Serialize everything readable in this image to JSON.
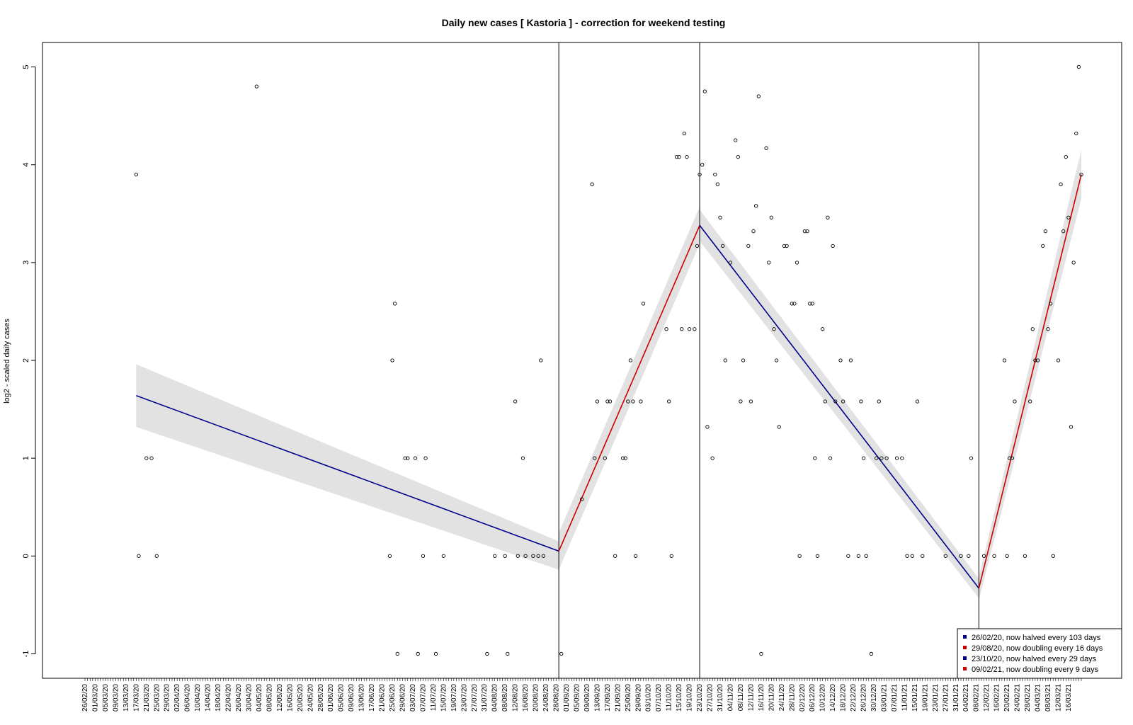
{
  "chart_data": {
    "type": "scatter",
    "title": "Daily new cases [ Kastoria ] - correction for weekend testing",
    "xlabel": "",
    "ylabel": "log2 - scaled daily cases",
    "ylim": [
      -1.25,
      5.25
    ],
    "y_ticks": [
      -1,
      0,
      1,
      2,
      3,
      4,
      5
    ],
    "x_start": "2020-02-26",
    "x_end": "2021-03-21",
    "x_tick_labels": [
      "26/02/20",
      "01/03/20",
      "05/03/20",
      "09/03/20",
      "13/03/20",
      "17/03/20",
      "21/03/20",
      "25/03/20",
      "29/03/20",
      "02/04/20",
      "06/04/20",
      "10/04/20",
      "14/04/20",
      "18/04/20",
      "22/04/20",
      "26/04/20",
      "30/04/20",
      "04/05/20",
      "08/05/20",
      "12/05/20",
      "16/05/20",
      "20/05/20",
      "24/05/20",
      "28/05/20",
      "01/06/20",
      "05/06/20",
      "09/06/20",
      "13/06/20",
      "17/06/20",
      "21/06/20",
      "25/06/20",
      "29/06/20",
      "03/07/20",
      "07/07/20",
      "11/07/20",
      "15/07/20",
      "19/07/20",
      "23/07/20",
      "27/07/20",
      "31/07/20",
      "04/08/20",
      "08/08/20",
      "12/08/20",
      "16/08/20",
      "20/08/20",
      "24/08/20",
      "28/08/20",
      "01/09/20",
      "05/09/20",
      "09/09/20",
      "13/09/20",
      "17/09/20",
      "21/09/20",
      "25/09/20",
      "29/09/20",
      "03/10/20",
      "07/10/20",
      "11/10/20",
      "15/10/20",
      "19/10/20",
      "23/10/20",
      "27/10/20",
      "31/10/20",
      "04/11/20",
      "08/11/20",
      "12/11/20",
      "16/11/20",
      "20/11/20",
      "24/11/20",
      "28/11/20",
      "02/12/20",
      "06/12/20",
      "10/12/20",
      "14/12/20",
      "18/12/20",
      "22/12/20",
      "26/12/20",
      "30/12/20",
      "03/01/21",
      "07/01/21",
      "11/01/21",
      "15/01/21",
      "19/01/21",
      "23/01/21",
      "27/01/21",
      "31/01/21",
      "04/02/21",
      "08/02/21",
      "12/02/21",
      "16/02/21",
      "20/02/21",
      "24/02/21",
      "28/02/21",
      "04/03/21",
      "08/03/21",
      "12/03/21",
      "16/03/21"
    ],
    "breakpoints": [
      "2020-08-29",
      "2020-10-23",
      "2021-02-09"
    ],
    "points": [
      [
        "2020-03-17",
        3.9
      ],
      [
        "2020-03-18",
        0
      ],
      [
        "2020-03-21",
        1
      ],
      [
        "2020-03-23",
        1
      ],
      [
        "2020-03-25",
        0
      ],
      [
        "2020-05-03",
        4.8
      ],
      [
        "2020-06-24",
        0
      ],
      [
        "2020-06-25",
        2
      ],
      [
        "2020-06-26",
        2.58
      ],
      [
        "2020-06-27",
        -1
      ],
      [
        "2020-06-30",
        1
      ],
      [
        "2020-07-01",
        1
      ],
      [
        "2020-07-04",
        1
      ],
      [
        "2020-07-05",
        -1
      ],
      [
        "2020-07-07",
        0
      ],
      [
        "2020-07-08",
        1
      ],
      [
        "2020-07-12",
        -1
      ],
      [
        "2020-07-15",
        0
      ],
      [
        "2020-08-01",
        -1
      ],
      [
        "2020-08-04",
        0
      ],
      [
        "2020-08-08",
        0
      ],
      [
        "2020-08-09",
        -1
      ],
      [
        "2020-08-12",
        1.58
      ],
      [
        "2020-08-13",
        0
      ],
      [
        "2020-08-15",
        1
      ],
      [
        "2020-08-16",
        0
      ],
      [
        "2020-08-19",
        0
      ],
      [
        "2020-08-21",
        0
      ],
      [
        "2020-08-22",
        2
      ],
      [
        "2020-08-23",
        0
      ],
      [
        "2020-08-30",
        -1
      ],
      [
        "2020-09-07",
        0.58
      ],
      [
        "2020-09-11",
        3.8
      ],
      [
        "2020-09-12",
        1
      ],
      [
        "2020-09-13",
        1.58
      ],
      [
        "2020-09-16",
        1
      ],
      [
        "2020-09-17",
        1.58
      ],
      [
        "2020-09-18",
        1.58
      ],
      [
        "2020-09-20",
        0
      ],
      [
        "2020-09-23",
        1
      ],
      [
        "2020-09-24",
        1
      ],
      [
        "2020-09-25",
        1.58
      ],
      [
        "2020-09-26",
        2
      ],
      [
        "2020-09-27",
        1.58
      ],
      [
        "2020-09-28",
        0
      ],
      [
        "2020-09-30",
        1.58
      ],
      [
        "2020-10-01",
        2.58
      ],
      [
        "2020-10-10",
        2.32
      ],
      [
        "2020-10-11",
        1.58
      ],
      [
        "2020-10-12",
        0
      ],
      [
        "2020-10-14",
        4.08
      ],
      [
        "2020-10-15",
        4.08
      ],
      [
        "2020-10-16",
        2.32
      ],
      [
        "2020-10-17",
        4.32
      ],
      [
        "2020-10-18",
        4.08
      ],
      [
        "2020-10-19",
        2.32
      ],
      [
        "2020-10-21",
        2.32
      ],
      [
        "2020-10-22",
        3.17
      ],
      [
        "2020-10-23",
        3.9
      ],
      [
        "2020-10-24",
        4.0
      ],
      [
        "2020-10-25",
        4.75
      ],
      [
        "2020-10-26",
        1.32
      ],
      [
        "2020-10-28",
        1
      ],
      [
        "2020-10-29",
        3.9
      ],
      [
        "2020-10-30",
        3.8
      ],
      [
        "2020-10-31",
        3.46
      ],
      [
        "2020-11-01",
        3.17
      ],
      [
        "2020-11-02",
        2
      ],
      [
        "2020-11-04",
        3.0
      ],
      [
        "2020-11-06",
        4.25
      ],
      [
        "2020-11-07",
        4.08
      ],
      [
        "2020-11-09",
        2
      ],
      [
        "2020-11-08",
        1.58
      ],
      [
        "2020-11-11",
        3.17
      ],
      [
        "2020-11-12",
        1.58
      ],
      [
        "2020-11-13",
        3.32
      ],
      [
        "2020-11-14",
        3.58
      ],
      [
        "2020-11-15",
        4.7
      ],
      [
        "2020-11-16",
        -1
      ],
      [
        "2020-11-18",
        4.17
      ],
      [
        "2020-11-19",
        3.0
      ],
      [
        "2020-11-20",
        3.46
      ],
      [
        "2020-11-21",
        2.32
      ],
      [
        "2020-11-22",
        2
      ],
      [
        "2020-11-23",
        1.32
      ],
      [
        "2020-11-25",
        3.17
      ],
      [
        "2020-11-26",
        3.17
      ],
      [
        "2020-11-28",
        2.58
      ],
      [
        "2020-11-29",
        2.58
      ],
      [
        "2020-11-30",
        3.0
      ],
      [
        "2020-12-01",
        0
      ],
      [
        "2020-12-03",
        3.32
      ],
      [
        "2020-12-04",
        3.32
      ],
      [
        "2020-12-05",
        2.58
      ],
      [
        "2020-12-06",
        2.58
      ],
      [
        "2020-12-07",
        1
      ],
      [
        "2020-12-08",
        0
      ],
      [
        "2020-12-10",
        2.32
      ],
      [
        "2020-12-11",
        1.58
      ],
      [
        "2020-12-12",
        3.46
      ],
      [
        "2020-12-13",
        1
      ],
      [
        "2020-12-14",
        3.17
      ],
      [
        "2020-12-15",
        1.58
      ],
      [
        "2020-12-17",
        2
      ],
      [
        "2020-12-18",
        1.58
      ],
      [
        "2020-12-20",
        0
      ],
      [
        "2020-12-21",
        2
      ],
      [
        "2020-12-24",
        0
      ],
      [
        "2020-12-25",
        1.58
      ],
      [
        "2020-12-26",
        1
      ],
      [
        "2020-12-27",
        0
      ],
      [
        "2020-12-29",
        -1
      ],
      [
        "2020-12-31",
        1
      ],
      [
        "2021-01-01",
        1.58
      ],
      [
        "2021-01-02",
        1
      ],
      [
        "2021-01-04",
        1
      ],
      [
        "2021-01-08",
        1
      ],
      [
        "2021-01-10",
        1
      ],
      [
        "2021-01-12",
        0
      ],
      [
        "2021-01-14",
        0
      ],
      [
        "2021-01-16",
        1.58
      ],
      [
        "2021-01-18",
        0
      ],
      [
        "2021-01-27",
        0
      ],
      [
        "2021-02-02",
        0
      ],
      [
        "2021-02-05",
        0
      ],
      [
        "2021-02-06",
        1
      ],
      [
        "2021-02-11",
        0
      ],
      [
        "2021-02-15",
        0
      ],
      [
        "2021-02-19",
        2
      ],
      [
        "2021-02-20",
        0
      ],
      [
        "2021-02-21",
        1
      ],
      [
        "2021-02-22",
        1
      ],
      [
        "2021-02-23",
        1.58
      ],
      [
        "2021-02-27",
        0
      ],
      [
        "2021-03-01",
        1.58
      ],
      [
        "2021-03-02",
        2.32
      ],
      [
        "2021-03-03",
        2
      ],
      [
        "2021-03-04",
        2
      ],
      [
        "2021-03-06",
        3.17
      ],
      [
        "2021-03-07",
        3.32
      ],
      [
        "2021-03-08",
        2.32
      ],
      [
        "2021-03-09",
        2.58
      ],
      [
        "2021-03-10",
        0
      ],
      [
        "2021-03-12",
        2
      ],
      [
        "2021-03-13",
        3.8
      ],
      [
        "2021-03-14",
        3.32
      ],
      [
        "2021-03-15",
        4.08
      ],
      [
        "2021-03-16",
        3.46
      ],
      [
        "2021-03-17",
        1.32
      ],
      [
        "2021-03-18",
        3.0
      ],
      [
        "2021-03-19",
        4.32
      ],
      [
        "2021-03-20",
        5.0
      ],
      [
        "2021-03-21",
        3.9
      ]
    ],
    "segments": [
      {
        "name": "26/02/20, now halved every 103 days",
        "color": "#00008B",
        "x0": "2020-03-17",
        "y0": 1.64,
        "x1": "2020-08-29",
        "y1": 0.05,
        "band": [
          [
            0.32,
            0.32
          ],
          [
            0.1,
            0.19
          ]
        ]
      },
      {
        "name": "29/08/20, now doubling every 16 days",
        "color": "#CC0000",
        "x0": "2020-08-29",
        "y0": 0.05,
        "x1": "2020-10-23",
        "y1": 3.38,
        "band": [
          [
            0.19,
            0.19
          ],
          [
            0.19,
            0.19
          ]
        ]
      },
      {
        "name": "23/10/20, now halved every 29 days",
        "color": "#00008B",
        "x0": "2020-10-23",
        "y0": 3.38,
        "x1": "2021-02-09",
        "y1": -0.33,
        "band": [
          [
            0.16,
            0.16
          ],
          [
            0.1,
            0.1
          ]
        ]
      },
      {
        "name": "09/02/21, now doubling every 9 days",
        "color": "#CC0000",
        "x0": "2021-02-09",
        "y0": -0.33,
        "x1": "2021-03-21",
        "y1": 3.9,
        "band": [
          [
            0.12,
            0.12
          ],
          [
            0.25,
            0.25
          ]
        ]
      }
    ],
    "legend_position": "bottom-right",
    "grid": false
  }
}
